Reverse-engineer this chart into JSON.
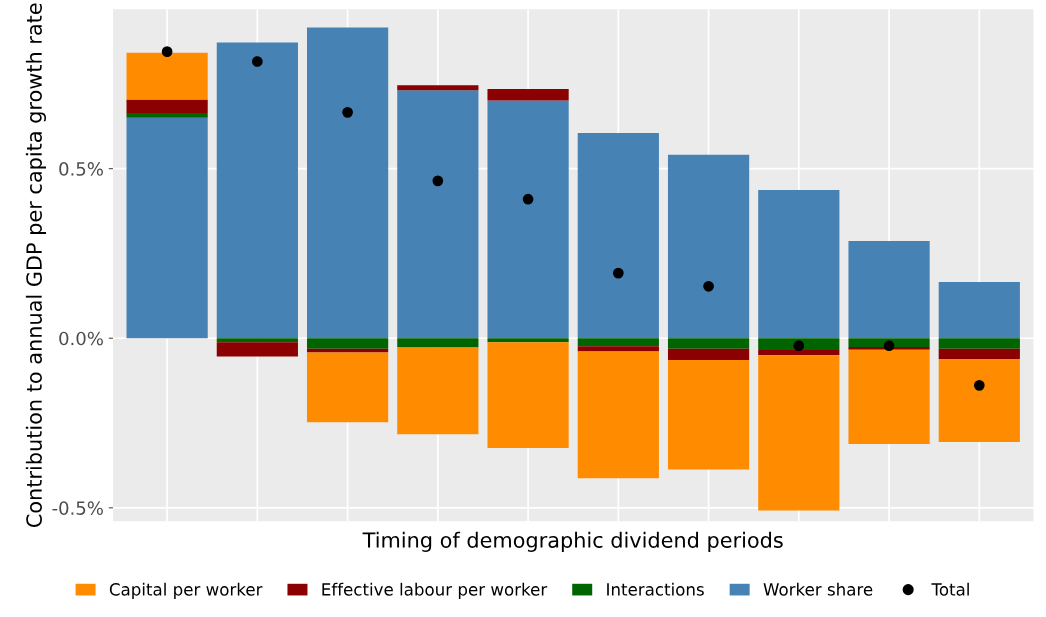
{
  "chart_data": {
    "type": "bar",
    "stacked": true,
    "xlabel": "Timing of demographic dividend periods",
    "ylabel": "Contribution to annual GDP per capita growth rate",
    "categories": [
      null,
      null,
      null,
      null,
      null,
      null,
      null,
      null,
      null,
      null
    ],
    "series": [
      {
        "name": "Worker share",
        "color": "#4682b4",
        "values": [
          0.65,
          0.872,
          0.916,
          0.731,
          0.701,
          0.605,
          0.541,
          0.437,
          0.287,
          0.166
        ]
      },
      {
        "name": "Interactions",
        "color": "#006400",
        "values": [
          0.014,
          -0.012,
          -0.031,
          -0.027,
          -0.012,
          -0.024,
          -0.031,
          -0.035,
          -0.026,
          -0.031
        ]
      },
      {
        "name": "Effective labour per worker",
        "color": "#8b0000",
        "values": [
          0.04,
          -0.042,
          -0.011,
          0.015,
          0.034,
          -0.015,
          -0.033,
          -0.015,
          -0.008,
          -0.03
        ]
      },
      {
        "name": "Capital per worker",
        "color": "#ff8c00",
        "values": [
          0.138,
          null,
          -0.206,
          -0.256,
          -0.312,
          -0.374,
          -0.323,
          -0.458,
          -0.278,
          -0.245
        ]
      },
      {
        "name": "Total",
        "type": "scatter",
        "color": "#000000",
        "values": [
          0.845,
          0.816,
          0.666,
          0.464,
          0.41,
          0.192,
          0.153,
          -0.022,
          -0.022,
          -0.139
        ]
      }
    ],
    "ylim": [
      -0.54,
      0.97
    ],
    "yticks": [
      {
        "value": -0.5,
        "label": "-0.5%"
      },
      {
        "value": 0,
        "label": "0.0%"
      },
      {
        "value": 0.5,
        "label": "0.5%"
      }
    ],
    "grid": true,
    "legend": "bottom",
    "marker": "circle"
  }
}
